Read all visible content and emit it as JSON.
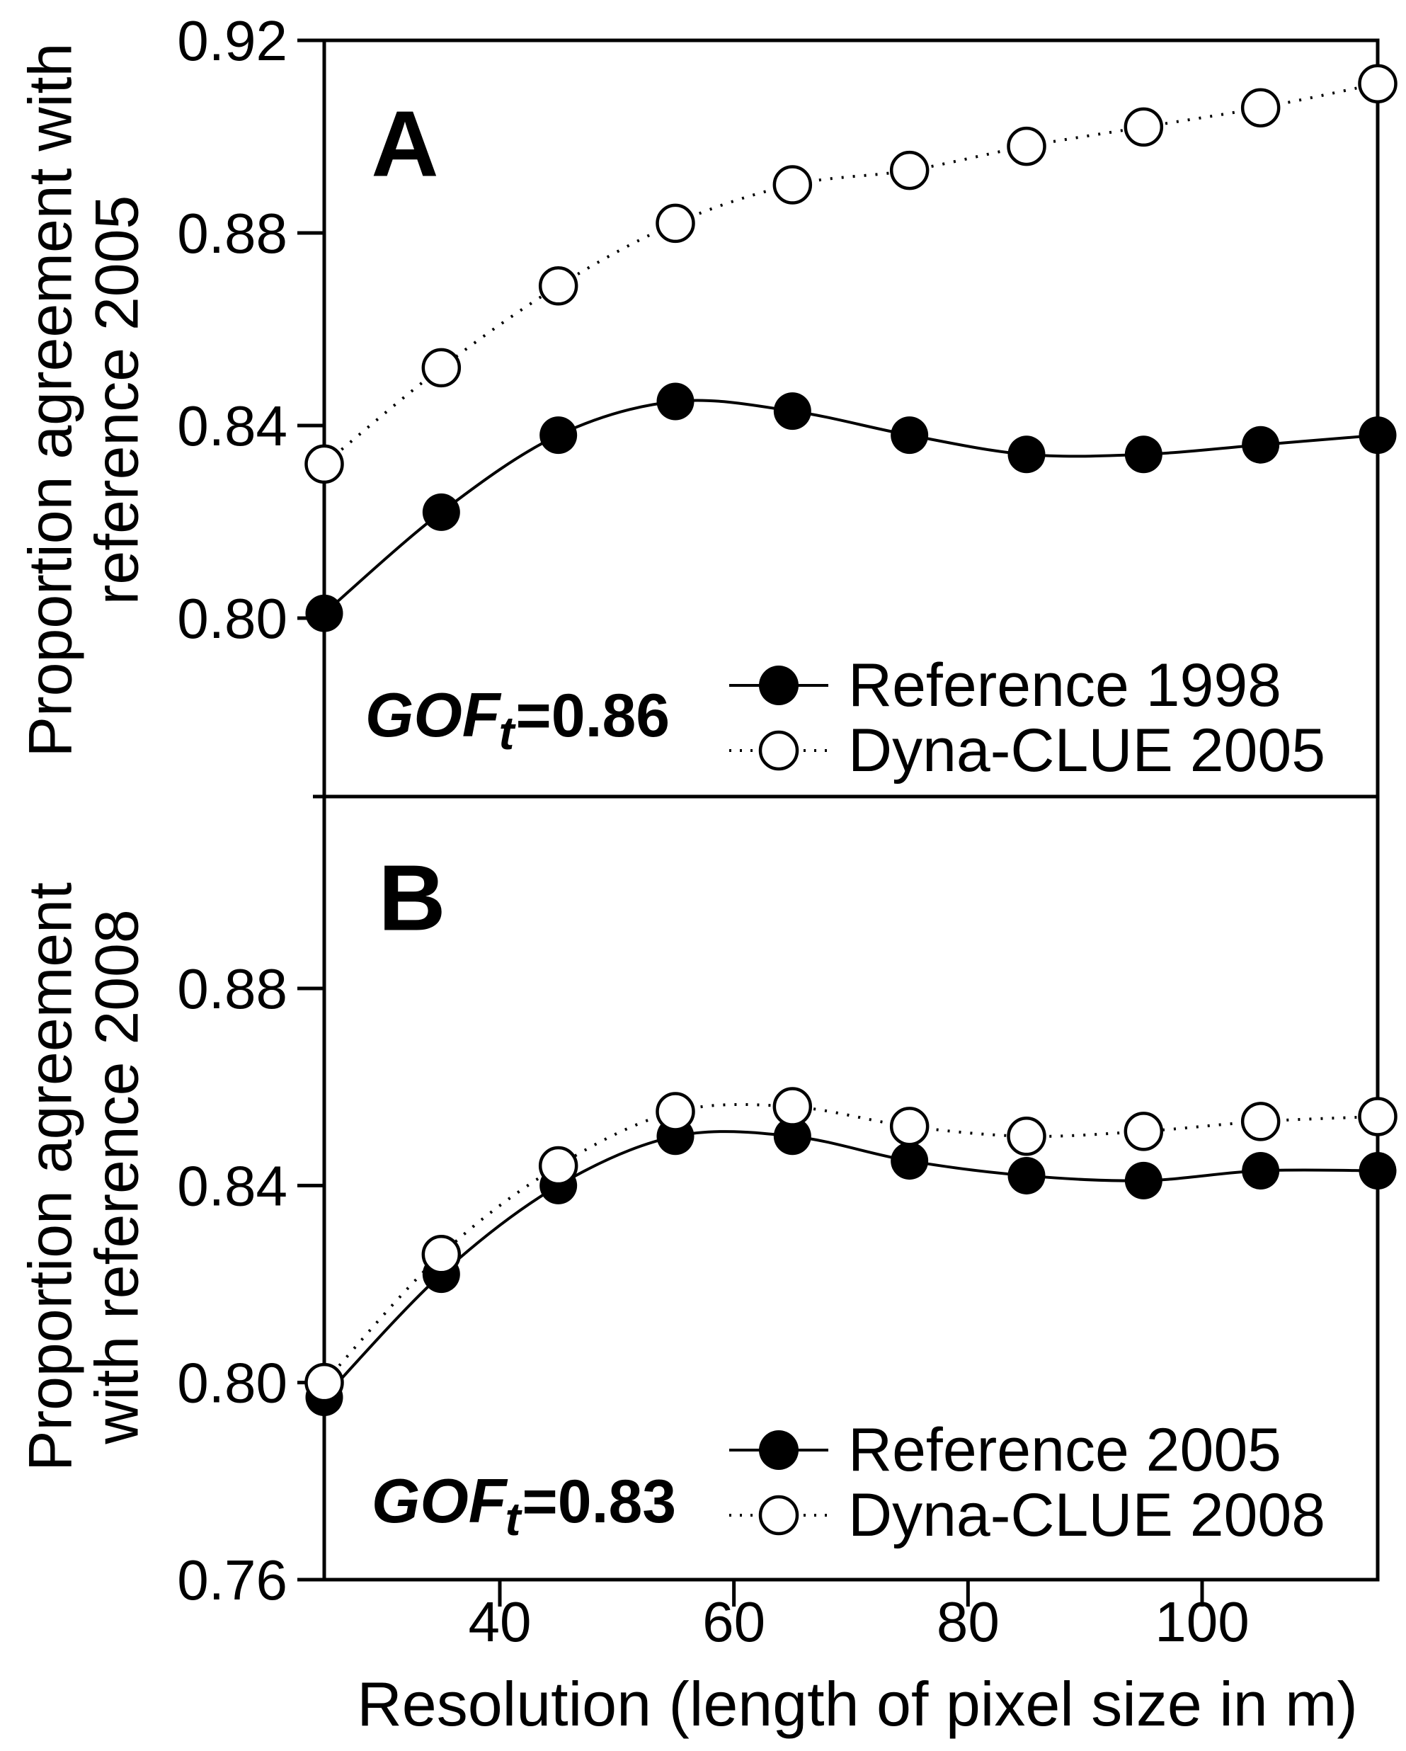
{
  "colors": {
    "ink": "#000000",
    "paper": "#ffffff"
  },
  "chart_data": [
    {
      "type": "line",
      "panel_label": "A",
      "x": [
        25,
        35,
        45,
        55,
        65,
        75,
        85,
        95,
        105,
        115
      ],
      "xlim": [
        25,
        115
      ],
      "xticks": [
        40,
        60,
        80,
        100
      ],
      "xtick_labels": [
        "40",
        "60",
        "80",
        "100"
      ],
      "xlabel": "Resolution (length of pixel size in m)",
      "ylabel_lines": [
        "Proportion agreement with",
        "reference 2005"
      ],
      "ylim": [
        0.763,
        0.92
      ],
      "yticks": [
        0.92,
        0.88,
        0.84,
        0.8
      ],
      "ytick_labels": [
        "0.92",
        "0.88",
        "0.84",
        "0.80"
      ],
      "grid": false,
      "legend_position": "lower right",
      "annotation": {
        "label": "GOF",
        "sub": "t",
        "value": "=0.86",
        "full": "GOFt=0.86"
      },
      "series": [
        {
          "name": "Reference 1998",
          "marker": "filled-circle",
          "line": "solid",
          "values": [
            0.801,
            0.822,
            0.838,
            0.845,
            0.843,
            0.838,
            0.834,
            0.834,
            0.836,
            0.838
          ]
        },
        {
          "name": "Dyna-CLUE 2005",
          "marker": "open-circle",
          "line": "dotted",
          "values": [
            0.832,
            0.852,
            0.869,
            0.882,
            0.89,
            0.893,
            0.898,
            0.902,
            0.906,
            0.911
          ]
        }
      ]
    },
    {
      "type": "line",
      "panel_label": "B",
      "x": [
        25,
        35,
        45,
        55,
        65,
        75,
        85,
        95,
        105,
        115
      ],
      "xlim": [
        25,
        115
      ],
      "xticks": [
        40,
        60,
        80,
        100
      ],
      "xtick_labels": [
        "40",
        "60",
        "80",
        "100"
      ],
      "xlabel": "Resolution (length of pixel size in m)",
      "ylabel_lines": [
        "Proportion agreement",
        "with reference 2008"
      ],
      "ylim": [
        0.76,
        0.919
      ],
      "yticks": [
        0.88,
        0.84,
        0.8,
        0.76
      ],
      "ytick_labels": [
        "0.88",
        "0.84",
        "0.80",
        "0.76"
      ],
      "grid": false,
      "legend_position": "lower right",
      "annotation": {
        "label": "GOF",
        "sub": "t",
        "value": "=0.83",
        "full": "GOFt=0.83"
      },
      "series": [
        {
          "name": "Reference 2005",
          "marker": "filled-circle",
          "line": "solid",
          "values": [
            0.797,
            0.822,
            0.84,
            0.85,
            0.85,
            0.845,
            0.842,
            0.841,
            0.843,
            0.843
          ]
        },
        {
          "name": "Dyna-CLUE 2008",
          "marker": "open-circle",
          "line": "dotted",
          "values": [
            0.8,
            0.826,
            0.844,
            0.855,
            0.856,
            0.852,
            0.85,
            0.851,
            0.853,
            0.854
          ]
        }
      ]
    }
  ]
}
